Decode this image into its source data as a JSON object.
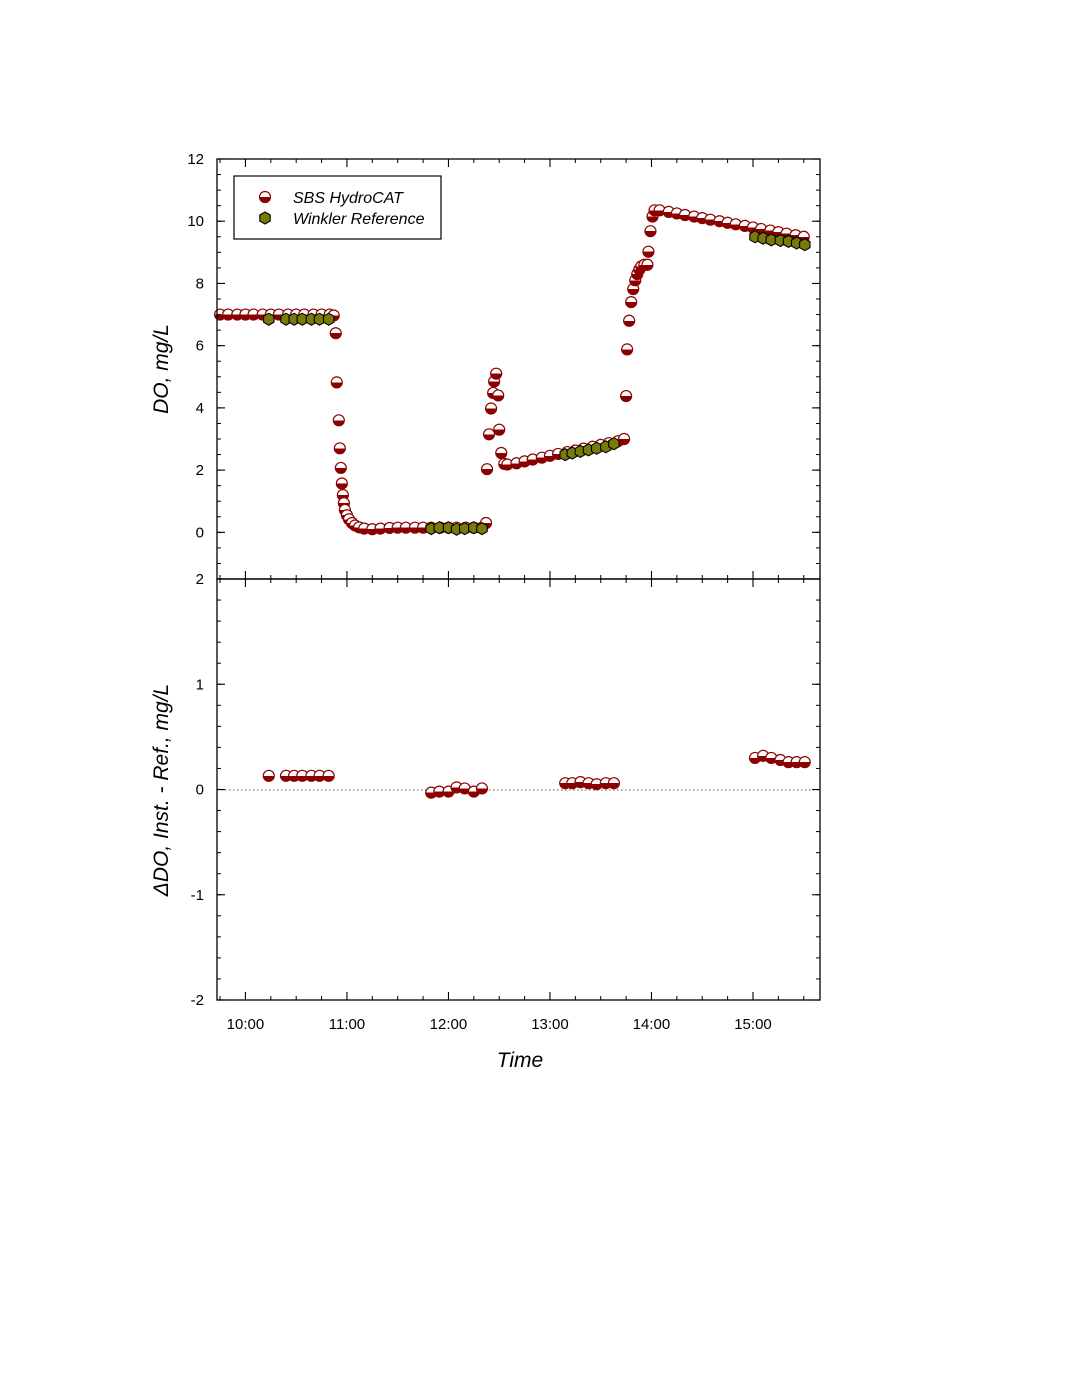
{
  "chart_data": [
    {
      "type": "scatter",
      "panel": "top",
      "xlabel": "",
      "ylabel": "DO, mg/L",
      "ylim": [
        -1.5,
        12
      ],
      "yticks": [
        0,
        2,
        4,
        6,
        8,
        10,
        12
      ],
      "x_unit": "hours of day",
      "xlim": [
        9.72,
        15.66
      ],
      "grid": false,
      "legend": {
        "placement": "top-left",
        "entries": [
          "SBS HydroCAT",
          "Winkler Reference"
        ]
      },
      "series": [
        {
          "name": "SBS HydroCAT",
          "marker": "half-filled circle",
          "color": "#8B0000",
          "points": [
            [
              9.75,
              7.0
            ],
            [
              9.83,
              7.0
            ],
            [
              9.92,
              7.0
            ],
            [
              10.0,
              7.0
            ],
            [
              10.08,
              7.0
            ],
            [
              10.17,
              7.0
            ],
            [
              10.25,
              7.0
            ],
            [
              10.33,
              7.0
            ],
            [
              10.42,
              7.0
            ],
            [
              10.5,
              7.0
            ],
            [
              10.58,
              7.0
            ],
            [
              10.67,
              7.0
            ],
            [
              10.75,
              7.0
            ],
            [
              10.83,
              7.0
            ],
            [
              10.87,
              6.97
            ],
            [
              10.89,
              6.4
            ],
            [
              10.9,
              4.82
            ],
            [
              10.92,
              3.6
            ],
            [
              10.93,
              2.7
            ],
            [
              10.94,
              2.07
            ],
            [
              10.95,
              1.57
            ],
            [
              10.96,
              1.2
            ],
            [
              10.97,
              0.94
            ],
            [
              10.98,
              0.72
            ],
            [
              11.0,
              0.55
            ],
            [
              11.02,
              0.42
            ],
            [
              11.05,
              0.3
            ],
            [
              11.08,
              0.22
            ],
            [
              11.12,
              0.16
            ],
            [
              11.17,
              0.12
            ],
            [
              11.25,
              0.1
            ],
            [
              11.33,
              0.12
            ],
            [
              11.42,
              0.14
            ],
            [
              11.5,
              0.15
            ],
            [
              11.58,
              0.15
            ],
            [
              11.67,
              0.15
            ],
            [
              11.75,
              0.15
            ],
            [
              11.83,
              0.15
            ],
            [
              11.92,
              0.15
            ],
            [
              12.0,
              0.15
            ],
            [
              12.08,
              0.15
            ],
            [
              12.17,
              0.15
            ],
            [
              12.25,
              0.15
            ],
            [
              12.33,
              0.15
            ],
            [
              12.37,
              0.3
            ],
            [
              12.38,
              2.03
            ],
            [
              12.4,
              3.15
            ],
            [
              12.42,
              3.98
            ],
            [
              12.44,
              4.48
            ],
            [
              12.45,
              4.85
            ],
            [
              12.47,
              5.1
            ],
            [
              12.49,
              4.4
            ],
            [
              12.5,
              3.3
            ],
            [
              12.52,
              2.55
            ],
            [
              12.55,
              2.2
            ],
            [
              12.58,
              2.18
            ],
            [
              12.67,
              2.22
            ],
            [
              12.75,
              2.28
            ],
            [
              12.83,
              2.34
            ],
            [
              12.92,
              2.4
            ],
            [
              13.0,
              2.46
            ],
            [
              13.08,
              2.52
            ],
            [
              13.17,
              2.58
            ],
            [
              13.25,
              2.63
            ],
            [
              13.33,
              2.69
            ],
            [
              13.42,
              2.75
            ],
            [
              13.5,
              2.81
            ],
            [
              13.58,
              2.87
            ],
            [
              13.67,
              2.93
            ],
            [
              13.73,
              3.0
            ],
            [
              13.75,
              4.38
            ],
            [
              13.76,
              5.88
            ],
            [
              13.78,
              6.8
            ],
            [
              13.8,
              7.4
            ],
            [
              13.82,
              7.82
            ],
            [
              13.84,
              8.1
            ],
            [
              13.86,
              8.3
            ],
            [
              13.88,
              8.45
            ],
            [
              13.9,
              8.55
            ],
            [
              13.93,
              8.6
            ],
            [
              13.96,
              8.6
            ],
            [
              13.97,
              9.02
            ],
            [
              13.99,
              9.68
            ],
            [
              14.01,
              10.15
            ],
            [
              14.03,
              10.35
            ],
            [
              14.08,
              10.35
            ],
            [
              14.17,
              10.3
            ],
            [
              14.25,
              10.25
            ],
            [
              14.33,
              10.2
            ],
            [
              14.42,
              10.15
            ],
            [
              14.5,
              10.1
            ],
            [
              14.58,
              10.05
            ],
            [
              14.67,
              10.0
            ],
            [
              14.75,
              9.95
            ],
            [
              14.83,
              9.9
            ],
            [
              14.92,
              9.85
            ],
            [
              15.0,
              9.8
            ],
            [
              15.08,
              9.75
            ],
            [
              15.17,
              9.7
            ],
            [
              15.25,
              9.65
            ],
            [
              15.33,
              9.6
            ],
            [
              15.42,
              9.55
            ],
            [
              15.5,
              9.5
            ]
          ]
        },
        {
          "name": "Winkler Reference",
          "marker": "hexagon",
          "color": "#6B6B00",
          "points": [
            [
              10.23,
              6.85
            ],
            [
              10.4,
              6.85
            ],
            [
              10.48,
              6.85
            ],
            [
              10.56,
              6.85
            ],
            [
              10.65,
              6.85
            ],
            [
              10.73,
              6.85
            ],
            [
              10.82,
              6.85
            ],
            [
              11.83,
              0.12
            ],
            [
              11.91,
              0.15
            ],
            [
              12.0,
              0.15
            ],
            [
              12.08,
              0.1
            ],
            [
              12.16,
              0.12
            ],
            [
              12.25,
              0.15
            ],
            [
              12.33,
              0.12
            ],
            [
              13.15,
              2.5
            ],
            [
              13.22,
              2.55
            ],
            [
              13.3,
              2.6
            ],
            [
              13.38,
              2.65
            ],
            [
              13.46,
              2.7
            ],
            [
              13.55,
              2.75
            ],
            [
              13.63,
              2.85
            ],
            [
              15.02,
              9.5
            ],
            [
              15.1,
              9.45
            ],
            [
              15.18,
              9.4
            ],
            [
              15.27,
              9.38
            ],
            [
              15.35,
              9.35
            ],
            [
              15.43,
              9.3
            ],
            [
              15.51,
              9.25
            ]
          ]
        }
      ]
    },
    {
      "type": "scatter",
      "panel": "bottom",
      "xlabel": "Time",
      "ylabel": "ΔDO, Inst. - Ref., mg/L",
      "ylim": [
        -2,
        2
      ],
      "yticks": [
        -2,
        -1,
        0,
        1,
        2
      ],
      "x_unit": "hours of day",
      "xlim": [
        9.72,
        15.66
      ],
      "xticks": [
        "10:00",
        "11:00",
        "12:00",
        "13:00",
        "14:00",
        "15:00"
      ],
      "reference_line": 0,
      "grid": false,
      "series": [
        {
          "marker": "half-filled circle",
          "color": "#8B0000",
          "points": [
            [
              10.23,
              0.13
            ],
            [
              10.4,
              0.13
            ],
            [
              10.48,
              0.13
            ],
            [
              10.56,
              0.13
            ],
            [
              10.65,
              0.13
            ],
            [
              10.73,
              0.13
            ],
            [
              10.82,
              0.13
            ],
            [
              11.83,
              -0.03
            ],
            [
              11.91,
              -0.02
            ],
            [
              12.0,
              -0.02
            ],
            [
              12.08,
              0.02
            ],
            [
              12.16,
              0.01
            ],
            [
              12.25,
              -0.02
            ],
            [
              12.33,
              0.01
            ],
            [
              13.15,
              0.06
            ],
            [
              13.22,
              0.06
            ],
            [
              13.3,
              0.07
            ],
            [
              13.38,
              0.06
            ],
            [
              13.46,
              0.05
            ],
            [
              13.55,
              0.06
            ],
            [
              13.63,
              0.06
            ],
            [
              15.02,
              0.3
            ],
            [
              15.1,
              0.32
            ],
            [
              15.18,
              0.3
            ],
            [
              15.27,
              0.28
            ],
            [
              15.35,
              0.26
            ],
            [
              15.43,
              0.26
            ],
            [
              15.51,
              0.26
            ]
          ]
        }
      ]
    }
  ]
}
